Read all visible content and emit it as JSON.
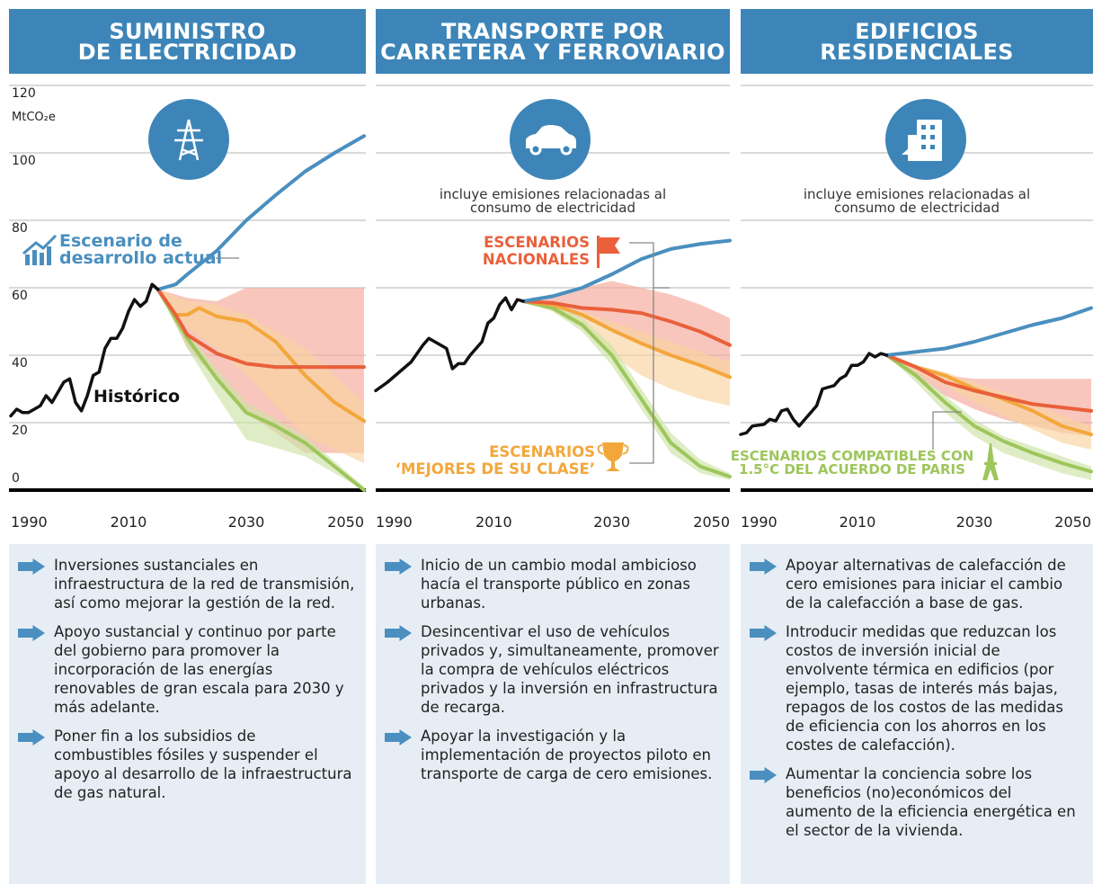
{
  "chart_data": [
    {
      "type": "line",
      "title": "SUMINISTRO\nDE ELECTRICIDAD",
      "y_label": "MtCO₂e",
      "xlim": [
        1990,
        2050
      ],
      "xticks": [
        1990,
        2010,
        2030,
        2050
      ],
      "ylim": [
        0,
        120
      ],
      "yticks": [
        0,
        20,
        40,
        60,
        80,
        100,
        120
      ],
      "ytick_labels": true,
      "grid": true,
      "series": [
        {
          "name": "Histórico",
          "color": "#111111",
          "x": [
            1990,
            1991,
            1992,
            1993,
            1994,
            1995,
            1996,
            1997,
            1998,
            1999,
            2000,
            2001,
            2002,
            2003,
            2004,
            2005,
            2006,
            2007,
            2008,
            2009,
            2010,
            2011,
            2012,
            2013,
            2014,
            2015
          ],
          "values": [
            22,
            24,
            23,
            23,
            24,
            25,
            28,
            26,
            29,
            32,
            33,
            26,
            23.5,
            28,
            34,
            35,
            42,
            45,
            45,
            48,
            53,
            56.5,
            54.5,
            56,
            61,
            59.5
          ]
        },
        {
          "name": "Escenario de\ndesarrollo actual",
          "color": "#4a8fbf",
          "x": [
            2015,
            2018,
            2020,
            2025,
            2030,
            2035,
            2040,
            2045,
            2050
          ],
          "values": [
            59.5,
            61,
            64,
            71,
            80,
            87.5,
            94.5,
            100,
            105
          ]
        },
        {
          "color": "#e9603b",
          "x": [
            2015,
            2018,
            2020,
            2025,
            2030,
            2035,
            2040,
            2045,
            2050
          ],
          "values": [
            59.5,
            52,
            46,
            40.5,
            37.5,
            36.5,
            36.5,
            36.5,
            36.5
          ],
          "band": {
            "color": "#f4a898",
            "x": [
              2015,
              2020,
              2025,
              2030,
              2040,
              2050
            ],
            "upper": [
              59.5,
              57,
              56,
              60,
              60,
              60
            ],
            "lower": [
              59.5,
              42,
              33,
              23,
              11,
              11
            ]
          }
        },
        {
          "color": "#f3a73b",
          "x": [
            2015,
            2018,
            2020,
            2022,
            2025,
            2030,
            2035,
            2040,
            2045,
            2050
          ],
          "values": [
            59.5,
            52,
            52,
            54,
            51.5,
            50,
            44,
            34,
            26,
            20.5
          ],
          "band": {
            "color": "#f9d4a0",
            "x": [
              2015,
              2020,
              2025,
              2030,
              2040,
              2050
            ],
            "upper": [
              59.5,
              56,
              55,
              52,
              42,
              26
            ],
            "lower": [
              59.5,
              48,
              42,
              34,
              16,
              8
            ]
          }
        },
        {
          "color": "#9ec65b",
          "x": [
            2015,
            2020,
            2025,
            2030,
            2035,
            2040,
            2045,
            2050
          ],
          "values": [
            59.5,
            45,
            33,
            23,
            19,
            14,
            7,
            0
          ],
          "band": {
            "color": "#cde3a6",
            "x": [
              2015,
              2020,
              2025,
              2030,
              2040,
              2050
            ],
            "upper": [
              59.5,
              47,
              36,
              26,
              16,
              1
            ],
            "lower": [
              59.5,
              42,
              28,
              15,
              10,
              0
            ]
          }
        }
      ],
      "bullets": [
        "Inversiones sustanciales en infraestructura de la red de transmisión, así como mejorar la gestión de la red.",
        "Apoyo sustancial y continuo por parte del gobierno para promover la incorporación de las energías renovables de gran escala para 2030 y más adelante.",
        "Poner fin a los subsidios de combustibles fósiles y suspender el apoyo al desarrollo de la infraestructura de gas natural."
      ]
    },
    {
      "type": "line",
      "title": "TRANSPORTE POR\nCARRETERA Y FERROVIARIO",
      "subtitle": "incluye emisiones relacionadas al\nconsumo de electricidad",
      "xlim": [
        1990,
        2050
      ],
      "xticks": [
        1990,
        2010,
        2030,
        2050
      ],
      "ylim": [
        0,
        120
      ],
      "yticks": [
        0,
        20,
        40,
        60,
        80,
        100,
        120
      ],
      "ytick_labels": false,
      "grid": true,
      "series": [
        {
          "color": "#111111",
          "x": [
            1990,
            1992,
            1994,
            1996,
            1998,
            1999,
            2000,
            2002,
            2003,
            2004,
            2005,
            2006,
            2008,
            2009,
            2010,
            2011,
            2012,
            2013,
            2014,
            2015
          ],
          "values": [
            29.5,
            32,
            35,
            38,
            43,
            45,
            44,
            42,
            36,
            37.5,
            37.5,
            40,
            44,
            49.5,
            51,
            55,
            57,
            53.5,
            56.5,
            56
          ]
        },
        {
          "color": "#4a8fbf",
          "x": [
            2015,
            2020,
            2025,
            2030,
            2035,
            2040,
            2045,
            2050
          ],
          "values": [
            56,
            57.5,
            60,
            64,
            68.5,
            71.5,
            73,
            74
          ]
        },
        {
          "name": "ESCENARIOS\nNACIONALES",
          "color": "#e9603b",
          "x": [
            2015,
            2020,
            2025,
            2030,
            2035,
            2040,
            2045,
            2050
          ],
          "values": [
            56,
            55.5,
            54,
            53.5,
            52.5,
            50,
            47,
            43
          ],
          "band": {
            "color": "#f4a898",
            "x": [
              2015,
              2020,
              2025,
              2030,
              2035,
              2040,
              2045,
              2050
            ],
            "upper": [
              56,
              58,
              60,
              62,
              60,
              58,
              55,
              51
            ],
            "lower": [
              56,
              54,
              51,
              47,
              44,
              40,
              37,
              34
            ]
          }
        },
        {
          "name": "ESCENARIOS\n‘MEJORES DE SU CLASE’",
          "color": "#f3a73b",
          "x": [
            2015,
            2020,
            2025,
            2030,
            2035,
            2040,
            2045,
            2050
          ],
          "values": [
            56,
            55,
            52,
            47.5,
            43.5,
            40,
            37,
            33.5
          ],
          "band": {
            "color": "#f9d4a0",
            "x": [
              2015,
              2020,
              2025,
              2030,
              2035,
              2040,
              2045,
              2050
            ],
            "upper": [
              56,
              55,
              53,
              50,
              47,
              44,
              41,
              38
            ],
            "lower": [
              56,
              53,
              48,
              40,
              34,
              30,
              27,
              25
            ]
          }
        },
        {
          "color": "#9ec65b",
          "x": [
            2015,
            2020,
            2025,
            2030,
            2035,
            2040,
            2045,
            2050
          ],
          "values": [
            56,
            54,
            49,
            40,
            27,
            14,
            7,
            4
          ],
          "band": {
            "color": "#cde3a6",
            "x": [
              2015,
              2020,
              2025,
              2030,
              2035,
              2040,
              2045,
              2050
            ],
            "upper": [
              56,
              55,
              51,
              43,
              30,
              17,
              9,
              5
            ],
            "lower": [
              56,
              53,
              47,
              37,
              24,
              11,
              5,
              3
            ]
          }
        }
      ],
      "bullets": [
        "Inicio de un cambio modal ambicioso hacía el transporte público en zonas urbanas.",
        "Desincentivar el uso de vehículos privados y, simultaneamente, promover la compra de vehículos eléctricos privados y la inversión en infrastructura de recarga.",
        "Apoyar la investigación y la implementación de proyectos piloto en transporte de carga de cero emisiones."
      ]
    },
    {
      "type": "line",
      "title": "EDIFICIOS\nRESIDENCIALES",
      "subtitle": "incluye emisiones relacionadas al\nconsumo de electricidad",
      "xlim": [
        1990,
        2050
      ],
      "xticks": [
        1990,
        2010,
        2030,
        2050
      ],
      "ylim": [
        0,
        120
      ],
      "yticks": [
        0,
        20,
        40,
        60,
        80,
        100,
        120
      ],
      "ytick_labels": false,
      "grid": true,
      "series": [
        {
          "color": "#111111",
          "x": [
            1990,
            1991,
            1992,
            1994,
            1995,
            1996,
            1997,
            1998,
            1999,
            2000,
            2001,
            2002,
            2003,
            2004,
            2005,
            2006,
            2007,
            2008,
            2009,
            2010,
            2011,
            2012,
            2013,
            2014,
            2015
          ],
          "values": [
            16.5,
            17,
            19,
            19.5,
            21,
            20.5,
            23.5,
            24,
            21,
            19,
            21,
            23,
            25,
            30,
            30.5,
            31,
            33,
            34,
            37,
            37,
            38,
            40.5,
            39.5,
            40.5,
            40
          ]
        },
        {
          "color": "#4a8fbf",
          "x": [
            2015,
            2020,
            2025,
            2030,
            2035,
            2040,
            2045,
            2050
          ],
          "values": [
            40,
            41,
            42,
            44,
            46.5,
            49,
            51,
            54
          ]
        },
        {
          "color": "#e9603b",
          "x": [
            2015,
            2020,
            2025,
            2030,
            2035,
            2040,
            2045,
            2050
          ],
          "values": [
            40,
            36.5,
            32,
            29.5,
            27.5,
            25.5,
            24.5,
            23.5
          ],
          "band": {
            "color": "#f4a898",
            "x": [
              2015,
              2020,
              2025,
              2030,
              2035,
              2040,
              2045,
              2050
            ],
            "upper": [
              40,
              37,
              34,
              33,
              33,
              33,
              33,
              33
            ],
            "lower": [
              40,
              34,
              28,
              24,
              21,
              19,
              17,
              16
            ]
          }
        },
        {
          "color": "#f3a73b",
          "x": [
            2015,
            2020,
            2025,
            2030,
            2035,
            2040,
            2045,
            2050
          ],
          "values": [
            40,
            36.5,
            34,
            30,
            27,
            23.5,
            19,
            16.5
          ],
          "band": {
            "color": "#f9d4a0",
            "x": [
              2015,
              2020,
              2025,
              2030,
              2035,
              2040,
              2045,
              2050
            ],
            "upper": [
              40,
              37,
              35,
              32,
              29,
              26,
              22,
              19
            ],
            "lower": [
              40,
              35,
              31,
              26,
              22,
              18,
              14,
              12
            ]
          }
        },
        {
          "name": "ESCENARIOS COMPATIBLES CON\n1.5°C DEL ACUERDO DE PARIS",
          "color": "#9ec65b",
          "x": [
            2015,
            2020,
            2025,
            2030,
            2035,
            2040,
            2045,
            2050
          ],
          "values": [
            40,
            34,
            26,
            19,
            14.5,
            11,
            8,
            5.5
          ],
          "band": {
            "color": "#cde3a6",
            "x": [
              2015,
              2020,
              2025,
              2030,
              2035,
              2040,
              2045,
              2050
            ],
            "upper": [
              40,
              35,
              28,
              21,
              16,
              13,
              10,
              7
            ],
            "lower": [
              40,
              32,
              23,
              16,
              11,
              8,
              5,
              3
            ]
          }
        }
      ],
      "bullets": [
        "Apoyar alternativas de calefacción de cero emisiones para iniciar el cambio de la calefacción a base de gas.",
        "Introducir medidas que reduzcan los costos de inversión inicial de envolvente térmica en edificios (por ejemplo, tasas de interés más bajas, repagos de los costos de las medidas de eficiencia con los ahorros en los costes de calefacción).",
        "Aumentar la conciencia sobre los beneficios (no)económicos del aumento de la eficiencia energética en el sector de la vivienda."
      ]
    }
  ]
}
